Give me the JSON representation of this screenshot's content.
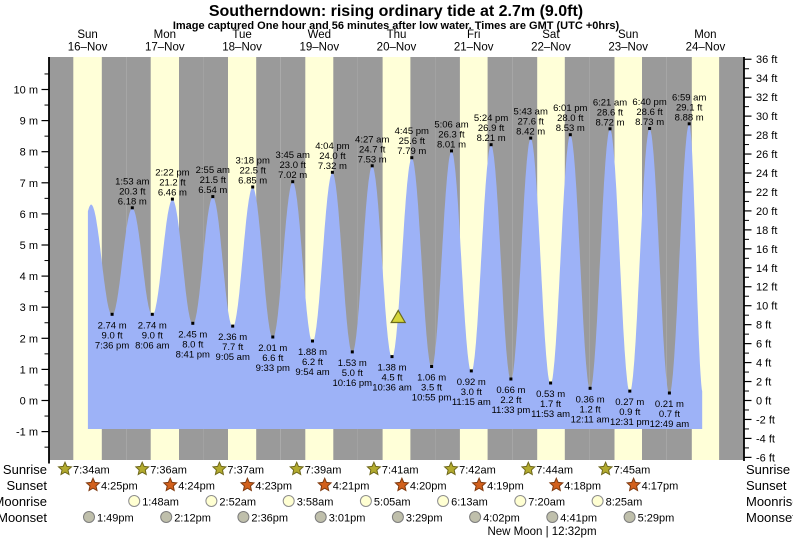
{
  "title": "Southerndown: rising  ordinary tide at 2.7m (9.0ft)",
  "subtitle": "Image captured One hour and 56 minutes after low water. Times are GMT (UTC +0hrs)",
  "new_moon": "New Moon | 12:32pm",
  "row_labels": {
    "sunrise": "Sunrise",
    "sunset": "Sunset",
    "moonrise": "Moonrise",
    "moonset": "Moonset"
  },
  "colors": {
    "night_band": "#9a9a9a",
    "daylight_band": "#ffffd8",
    "tide_fill": "#9db2f7",
    "day_label": "#e63030",
    "annotation_text": "#000000",
    "sunrise_star": "#b3ab2e",
    "sunset_star": "#d2601c",
    "moonrise_circle": "#ffffd2",
    "moonset_circle": "#bfbfab",
    "current_marker": "#d6d63a"
  },
  "chart_data": {
    "type": "area",
    "title": "Southerndown: rising  ordinary tide at 2.7m (9.0ft)",
    "x_axis": "Days Sun 16-Nov through Mon 24-Nov, time GMT",
    "y_axis_left": {
      "unit": "m",
      "min": -1,
      "max": 10,
      "step": 1
    },
    "y_axis_right": {
      "unit": "ft",
      "min": -6,
      "max": 36,
      "step": 2
    },
    "days": [
      {
        "dow": "Sun",
        "date": "16–Nov"
      },
      {
        "dow": "Mon",
        "date": "17–Nov"
      },
      {
        "dow": "Tue",
        "date": "18–Nov"
      },
      {
        "dow": "Wed",
        "date": "19–Nov"
      },
      {
        "dow": "Thu",
        "date": "20–Nov"
      },
      {
        "dow": "Fri",
        "date": "21–Nov"
      },
      {
        "dow": "Sat",
        "date": "22–Nov"
      },
      {
        "dow": "Sun",
        "date": "23–Nov"
      },
      {
        "dow": "Mon",
        "date": "24–Nov"
      }
    ],
    "unlabeled_first_high": {
      "t_hours": 13.1,
      "value_m": 6.3
    },
    "high_tides": [
      {
        "t_hours": 25.883,
        "time": "1:53 am",
        "ft": "20.3 ft",
        "m": "6.18 m",
        "value_m": 6.18
      },
      {
        "t_hours": 38.367,
        "time": "2:22 pm",
        "ft": "21.2 ft",
        "m": "6.46 m",
        "value_m": 6.46
      },
      {
        "t_hours": 50.917,
        "time": "2:55 am",
        "ft": "21.5 ft",
        "m": "6.54 m",
        "value_m": 6.54
      },
      {
        "t_hours": 63.3,
        "time": "3:18 pm",
        "ft": "22.5 ft",
        "m": "6.85 m",
        "value_m": 6.85
      },
      {
        "t_hours": 75.75,
        "time": "3:45 am",
        "ft": "23.0 ft",
        "m": "7.02 m",
        "value_m": 7.02
      },
      {
        "t_hours": 88.067,
        "time": "4:04 pm",
        "ft": "24.0 ft",
        "m": "7.32 m",
        "value_m": 7.32
      },
      {
        "t_hours": 100.45,
        "time": "4:27 am",
        "ft": "24.7 ft",
        "m": "7.53 m",
        "value_m": 7.53
      },
      {
        "t_hours": 112.75,
        "time": "4:45 pm",
        "ft": "25.6 ft",
        "m": "7.79 m",
        "value_m": 7.79
      },
      {
        "t_hours": 125.1,
        "time": "5:06 am",
        "ft": "26.3 ft",
        "m": "8.01 m",
        "value_m": 8.01
      },
      {
        "t_hours": 137.4,
        "time": "5:24 pm",
        "ft": "26.9 ft",
        "m": "8.21 m",
        "value_m": 8.21
      },
      {
        "t_hours": 149.717,
        "time": "5:43 am",
        "ft": "27.6 ft",
        "m": "8.42 m",
        "value_m": 8.42
      },
      {
        "t_hours": 162.017,
        "time": "6:01 pm",
        "ft": "28.0 ft",
        "m": "8.53 m",
        "value_m": 8.53
      },
      {
        "t_hours": 174.35,
        "time": "6:21 am",
        "ft": "28.6 ft",
        "m": "8.72 m",
        "value_m": 8.72
      },
      {
        "t_hours": 186.667,
        "time": "6:40 pm",
        "ft": "28.6 ft",
        "m": "8.73 m",
        "value_m": 8.73
      },
      {
        "t_hours": 198.983,
        "time": "6:59 am",
        "ft": "29.1 ft",
        "m": "8.88 m",
        "value_m": 8.88
      }
    ],
    "low_tides": [
      {
        "t_hours": 19.6,
        "time": "7:36 pm",
        "ft": "9.0 ft",
        "m": "2.74 m",
        "value_m": 2.74
      },
      {
        "t_hours": 32.1,
        "time": "8:06 am",
        "ft": "9.0 ft",
        "m": "2.74 m",
        "value_m": 2.74
      },
      {
        "t_hours": 44.683,
        "time": "8:41 pm",
        "ft": "8.0 ft",
        "m": "2.45 m",
        "value_m": 2.45
      },
      {
        "t_hours": 57.083,
        "time": "9:05 am",
        "ft": "7.7 ft",
        "m": "2.36 m",
        "value_m": 2.36
      },
      {
        "t_hours": 69.55,
        "time": "9:33 pm",
        "ft": "6.6 ft",
        "m": "2.01 m",
        "value_m": 2.01
      },
      {
        "t_hours": 81.9,
        "time": "9:54 am",
        "ft": "6.2 ft",
        "m": "1.88 m",
        "value_m": 1.88
      },
      {
        "t_hours": 94.267,
        "time": "10:16 pm",
        "ft": "5.0 ft",
        "m": "1.53 m",
        "value_m": 1.53
      },
      {
        "t_hours": 106.6,
        "time": "10:36 am",
        "ft": "4.5 ft",
        "m": "1.38 m",
        "value_m": 1.38
      },
      {
        "t_hours": 118.917,
        "time": "10:55 pm",
        "ft": "3.5 ft",
        "m": "1.06 m",
        "value_m": 1.06
      },
      {
        "t_hours": 131.25,
        "time": "11:15 am",
        "ft": "3.0 ft",
        "m": "0.92 m",
        "value_m": 0.92
      },
      {
        "t_hours": 143.55,
        "time": "11:33 pm",
        "ft": "2.2 ft",
        "m": "0.66 m",
        "value_m": 0.66
      },
      {
        "t_hours": 155.883,
        "time": "11:53 am",
        "ft": "1.7 ft",
        "m": "0.53 m",
        "value_m": 0.53
      },
      {
        "t_hours": 168.183,
        "time": "12:11 am",
        "ft": "1.2 ft",
        "m": "0.36 m",
        "value_m": 0.36
      },
      {
        "t_hours": 180.517,
        "time": "12:31 pm",
        "ft": "0.9 ft",
        "m": "0.27 m",
        "value_m": 0.27
      },
      {
        "t_hours": 192.817,
        "time": "12:49 am",
        "ft": "0.7 ft",
        "m": "0.21 m",
        "value_m": 0.21
      }
    ],
    "current_tide_marker": {
      "t_hours": 108.53,
      "value_m": 2.7
    },
    "sun_moon": {
      "sunrise": [
        {
          "day": 0,
          "time": "7:34am"
        },
        {
          "day": 1,
          "time": "7:36am"
        },
        {
          "day": 2,
          "time": "7:37am"
        },
        {
          "day": 3,
          "time": "7:39am"
        },
        {
          "day": 4,
          "time": "7:41am"
        },
        {
          "day": 5,
          "time": "7:42am"
        },
        {
          "day": 6,
          "time": "7:44am"
        },
        {
          "day": 7,
          "time": "7:45am"
        }
      ],
      "sunset": [
        {
          "day": 0,
          "time": "4:25pm"
        },
        {
          "day": 1,
          "time": "4:24pm"
        },
        {
          "day": 2,
          "time": "4:23pm"
        },
        {
          "day": 3,
          "time": "4:21pm"
        },
        {
          "day": 4,
          "time": "4:20pm"
        },
        {
          "day": 5,
          "time": "4:19pm"
        },
        {
          "day": 6,
          "time": "4:18pm"
        },
        {
          "day": 7,
          "time": "4:17pm"
        }
      ],
      "moonrise": [
        {
          "day": 1,
          "time": "1:48am"
        },
        {
          "day": 2,
          "time": "2:52am"
        },
        {
          "day": 3,
          "time": "3:58am"
        },
        {
          "day": 4,
          "time": "5:05am"
        },
        {
          "day": 5,
          "time": "6:13am"
        },
        {
          "day": 6,
          "time": "7:20am"
        },
        {
          "day": 7,
          "time": "8:25am"
        }
      ],
      "moonset": [
        {
          "day": 0,
          "time": "1:49pm"
        },
        {
          "day": 1,
          "time": "2:12pm"
        },
        {
          "day": 2,
          "time": "2:36pm"
        },
        {
          "day": 3,
          "time": "3:01pm"
        },
        {
          "day": 4,
          "time": "3:29pm"
        },
        {
          "day": 5,
          "time": "4:02pm"
        },
        {
          "day": 6,
          "time": "4:41pm"
        },
        {
          "day": 7,
          "time": "5:29pm"
        }
      ]
    }
  }
}
